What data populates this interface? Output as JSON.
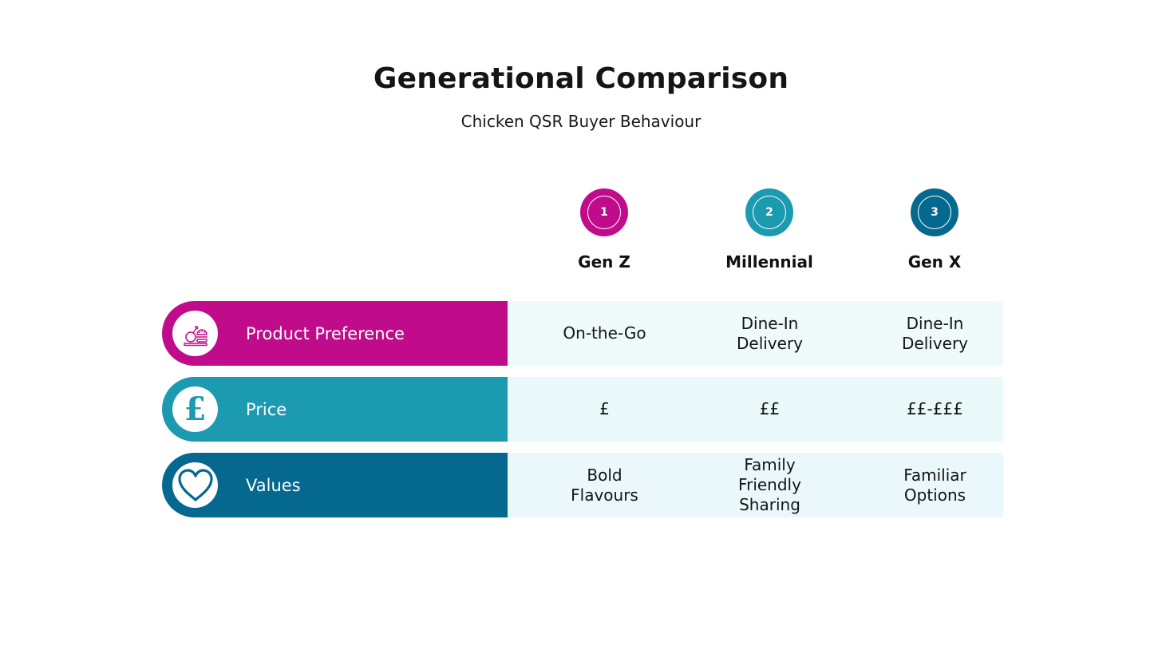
{
  "header": {
    "title": "Generational Comparison",
    "subtitle": "Chicken QSR Buyer Behaviour"
  },
  "columns": [
    {
      "number": "1",
      "label": "Gen Z",
      "color": "#C00C8A"
    },
    {
      "number": "2",
      "label": "Millennial",
      "color": "#1C9AAF"
    },
    {
      "number": "3",
      "label": "Gen X",
      "color": "#05688F"
    }
  ],
  "rows": [
    {
      "label": "Product Preference",
      "icon": "chicken-burger-icon",
      "color": "#C00C8A",
      "cell_bg": "#EFFAFA",
      "values": [
        [
          "On-the-Go"
        ],
        [
          "Dine-In",
          "Delivery"
        ],
        [
          "Dine-In",
          "Delivery"
        ]
      ]
    },
    {
      "label": "Price",
      "icon": "pound-sign-icon",
      "icon_glyph": "£",
      "color": "#1C9AAF",
      "cell_bg": "#EAF9FA",
      "values": [
        [
          "£"
        ],
        [
          "££"
        ],
        [
          "££-£££"
        ]
      ]
    },
    {
      "label": "Values",
      "icon": "heart-icon",
      "color": "#05688F",
      "cell_bg": "#EAF8FC",
      "values": [
        [
          "Bold",
          "Flavours"
        ],
        [
          "Family",
          "Friendly",
          "Sharing"
        ],
        [
          "Familiar",
          "Options"
        ]
      ]
    }
  ]
}
